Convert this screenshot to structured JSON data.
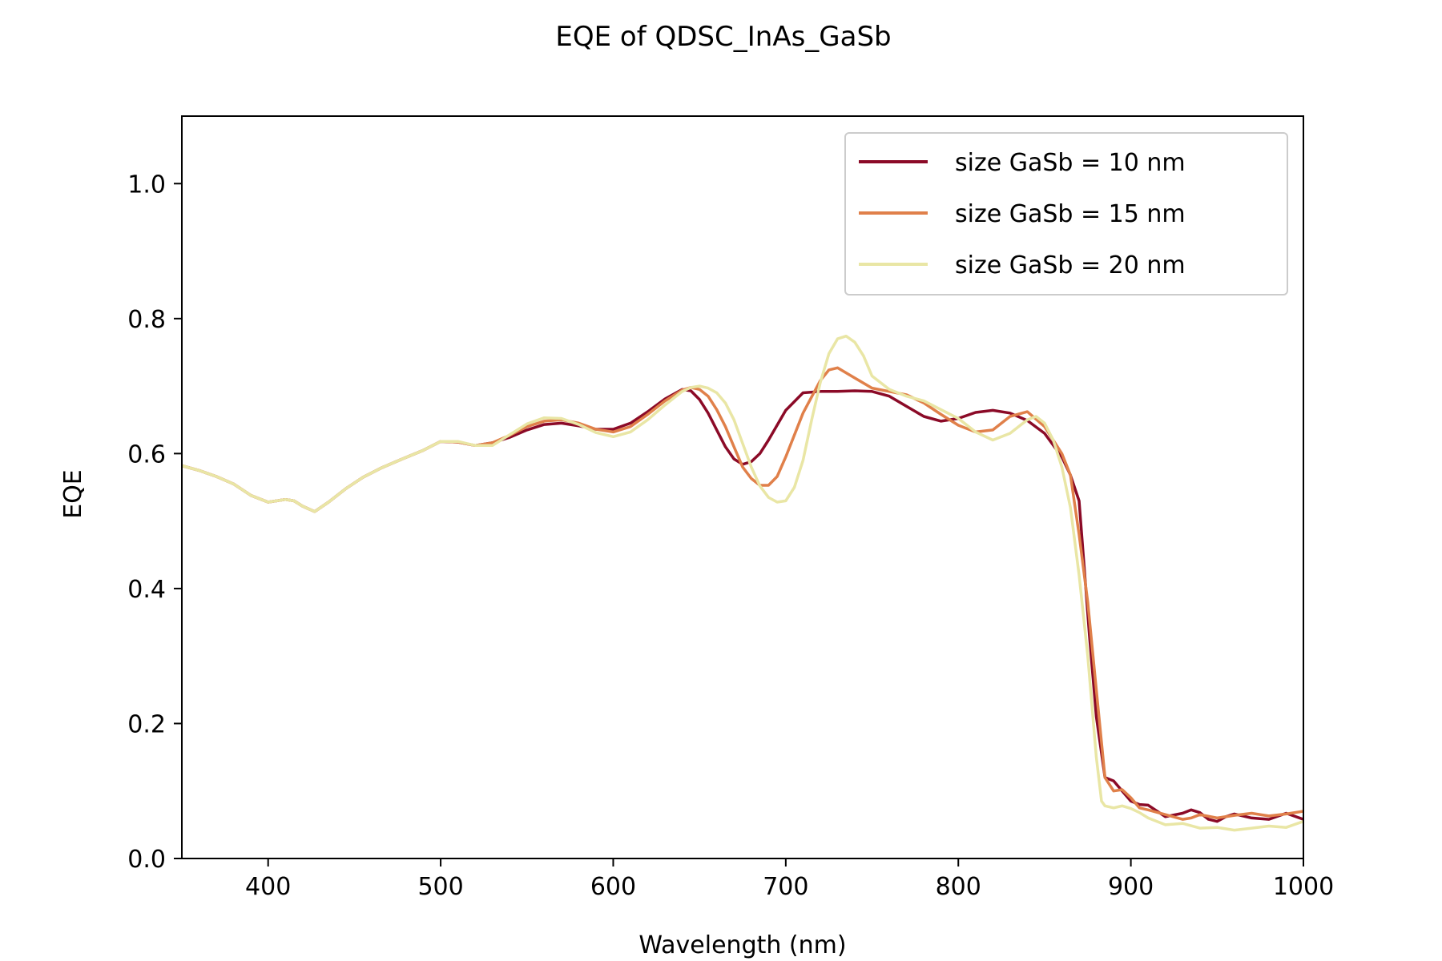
{
  "chart_data": {
    "type": "line",
    "title": "EQE of  QDSC_InAs_GaSb",
    "xlabel": "Wavelength (nm)",
    "ylabel": "EQE",
    "xlim": [
      350,
      1000
    ],
    "ylim": [
      0,
      1.1
    ],
    "xticks": [
      400,
      500,
      600,
      700,
      800,
      900,
      1000
    ],
    "yticks": [
      0.0,
      0.2,
      0.4,
      0.6,
      0.8,
      1.0
    ],
    "xtick_labels": [
      "400",
      "500",
      "600",
      "700",
      "800",
      "900",
      "1000"
    ],
    "ytick_labels": [
      "0.0",
      "0.2",
      "0.4",
      "0.6",
      "0.8",
      "1.0"
    ],
    "grid": false,
    "legend_position": "top-right",
    "series": [
      {
        "name": "size GaSb = 10 nm",
        "color": "#8b0a27",
        "x": [
          350,
          360,
          370,
          380,
          390,
          400,
          410,
          415,
          420,
          427,
          435,
          445,
          455,
          465,
          475,
          490,
          500,
          510,
          520,
          530,
          540,
          550,
          560,
          570,
          580,
          590,
          600,
          610,
          620,
          630,
          640,
          645,
          650,
          655,
          660,
          665,
          670,
          675,
          680,
          685,
          690,
          700,
          710,
          720,
          730,
          740,
          750,
          760,
          770,
          780,
          790,
          800,
          810,
          820,
          830,
          840,
          850,
          860,
          865,
          868,
          870,
          873,
          876,
          880,
          885,
          890,
          895,
          900,
          905,
          910,
          920,
          930,
          935,
          940,
          945,
          950,
          955,
          960,
          970,
          980,
          990,
          1000
        ],
        "y": [
          0.582,
          0.575,
          0.566,
          0.555,
          0.538,
          0.528,
          0.532,
          0.53,
          0.522,
          0.514,
          0.528,
          0.548,
          0.565,
          0.578,
          0.589,
          0.605,
          0.618,
          0.617,
          0.612,
          0.616,
          0.624,
          0.635,
          0.643,
          0.645,
          0.641,
          0.636,
          0.636,
          0.645,
          0.662,
          0.681,
          0.695,
          0.693,
          0.68,
          0.66,
          0.635,
          0.61,
          0.592,
          0.584,
          0.588,
          0.6,
          0.62,
          0.664,
          0.69,
          0.692,
          0.692,
          0.693,
          0.692,
          0.685,
          0.67,
          0.655,
          0.648,
          0.652,
          0.661,
          0.664,
          0.66,
          0.649,
          0.63,
          0.595,
          0.568,
          0.545,
          0.53,
          0.43,
          0.33,
          0.21,
          0.12,
          0.115,
          0.1,
          0.085,
          0.08,
          0.079,
          0.062,
          0.067,
          0.072,
          0.068,
          0.058,
          0.055,
          0.062,
          0.066,
          0.06,
          0.058,
          0.067,
          0.058
        ]
      },
      {
        "name": "size GaSb = 15 nm",
        "color": "#e0804a",
        "x": [
          350,
          360,
          370,
          380,
          390,
          400,
          410,
          415,
          420,
          427,
          435,
          445,
          455,
          465,
          475,
          490,
          500,
          510,
          520,
          530,
          540,
          550,
          560,
          570,
          580,
          590,
          600,
          610,
          620,
          630,
          640,
          645,
          650,
          655,
          660,
          665,
          670,
          675,
          680,
          685,
          690,
          695,
          700,
          710,
          720,
          725,
          730,
          740,
          750,
          760,
          770,
          780,
          790,
          800,
          810,
          820,
          830,
          840,
          850,
          860,
          865,
          870,
          875,
          880,
          885,
          890,
          895,
          900,
          905,
          910,
          920,
          930,
          935,
          940,
          950,
          960,
          970,
          980,
          990,
          1000
        ],
        "y": [
          0.582,
          0.575,
          0.566,
          0.555,
          0.538,
          0.528,
          0.532,
          0.53,
          0.522,
          0.514,
          0.528,
          0.548,
          0.565,
          0.578,
          0.589,
          0.605,
          0.618,
          0.617,
          0.612,
          0.616,
          0.627,
          0.64,
          0.648,
          0.65,
          0.645,
          0.636,
          0.632,
          0.64,
          0.658,
          0.678,
          0.694,
          0.698,
          0.695,
          0.685,
          0.665,
          0.64,
          0.61,
          0.58,
          0.563,
          0.553,
          0.553,
          0.566,
          0.595,
          0.66,
          0.708,
          0.724,
          0.727,
          0.712,
          0.697,
          0.692,
          0.687,
          0.675,
          0.658,
          0.642,
          0.632,
          0.635,
          0.655,
          0.662,
          0.64,
          0.6,
          0.568,
          0.48,
          0.38,
          0.25,
          0.12,
          0.1,
          0.102,
          0.09,
          0.075,
          0.072,
          0.065,
          0.058,
          0.06,
          0.065,
          0.06,
          0.064,
          0.067,
          0.063,
          0.066,
          0.07
        ]
      },
      {
        "name": "size GaSb = 20 nm",
        "color": "#e9e6a5",
        "x": [
          350,
          360,
          370,
          380,
          390,
          400,
          410,
          415,
          420,
          427,
          435,
          445,
          455,
          465,
          475,
          490,
          500,
          510,
          520,
          530,
          540,
          550,
          560,
          570,
          580,
          590,
          600,
          610,
          620,
          630,
          640,
          645,
          650,
          655,
          660,
          665,
          670,
          675,
          680,
          685,
          690,
          695,
          700,
          705,
          710,
          715,
          720,
          725,
          730,
          735,
          740,
          745,
          750,
          760,
          770,
          780,
          790,
          800,
          810,
          820,
          830,
          840,
          845,
          850,
          855,
          860,
          865,
          870,
          875,
          880,
          883,
          885,
          890,
          895,
          900,
          905,
          910,
          920,
          930,
          940,
          950,
          960,
          970,
          980,
          990,
          1000
        ],
        "y": [
          0.582,
          0.575,
          0.566,
          0.555,
          0.538,
          0.528,
          0.532,
          0.53,
          0.522,
          0.514,
          0.528,
          0.548,
          0.565,
          0.578,
          0.589,
          0.605,
          0.618,
          0.618,
          0.612,
          0.612,
          0.628,
          0.644,
          0.653,
          0.652,
          0.643,
          0.631,
          0.625,
          0.632,
          0.65,
          0.672,
          0.692,
          0.698,
          0.7,
          0.697,
          0.69,
          0.675,
          0.65,
          0.615,
          0.58,
          0.552,
          0.535,
          0.528,
          0.53,
          0.55,
          0.59,
          0.65,
          0.705,
          0.748,
          0.77,
          0.774,
          0.765,
          0.745,
          0.715,
          0.695,
          0.685,
          0.678,
          0.665,
          0.652,
          0.632,
          0.62,
          0.63,
          0.65,
          0.655,
          0.645,
          0.62,
          0.58,
          0.52,
          0.42,
          0.3,
          0.15,
          0.085,
          0.078,
          0.075,
          0.078,
          0.074,
          0.068,
          0.06,
          0.05,
          0.052,
          0.045,
          0.046,
          0.042,
          0.045,
          0.048,
          0.046,
          0.055
        ]
      }
    ]
  }
}
